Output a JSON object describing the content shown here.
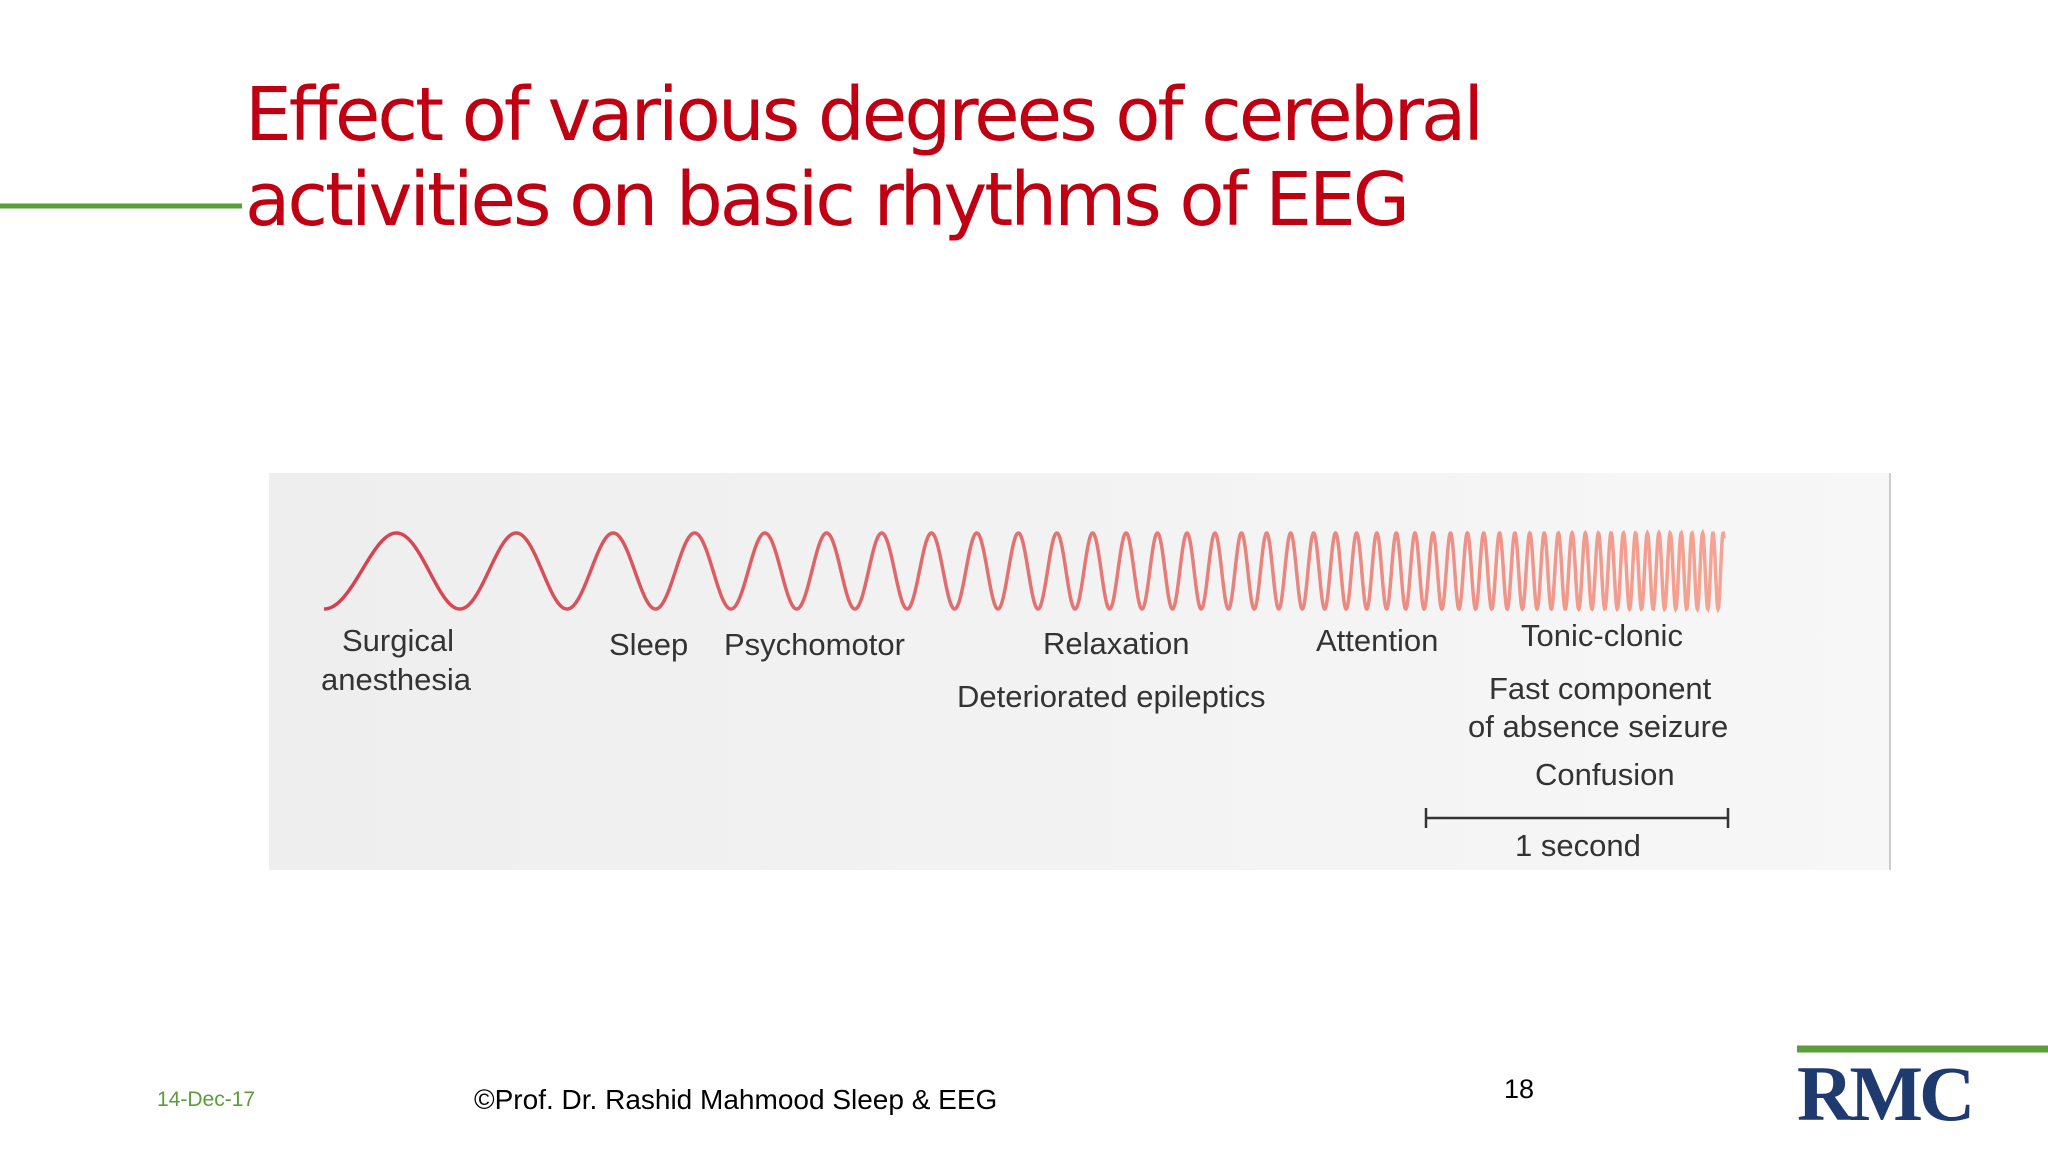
{
  "slide": {
    "title": [
      "Effect of various degrees of cerebral",
      "activities on basic rhythms of EEG"
    ],
    "figure": {
      "labels": [
        "Surgical",
        "anesthesia",
        "Sleep",
        "Psychomotor",
        "Relaxation",
        "Deteriorated epileptics",
        "Attention",
        "Tonic-clonic",
        "Fast component",
        "of absence seizure",
        "Confusion"
      ],
      "scale_label": "1 second"
    },
    "footer": {
      "date": "14-Dec-17",
      "copyright": "©Prof. Dr. Rashid Mahmood  Sleep & EEG",
      "page_number": "18",
      "logo": "RMC"
    }
  }
}
